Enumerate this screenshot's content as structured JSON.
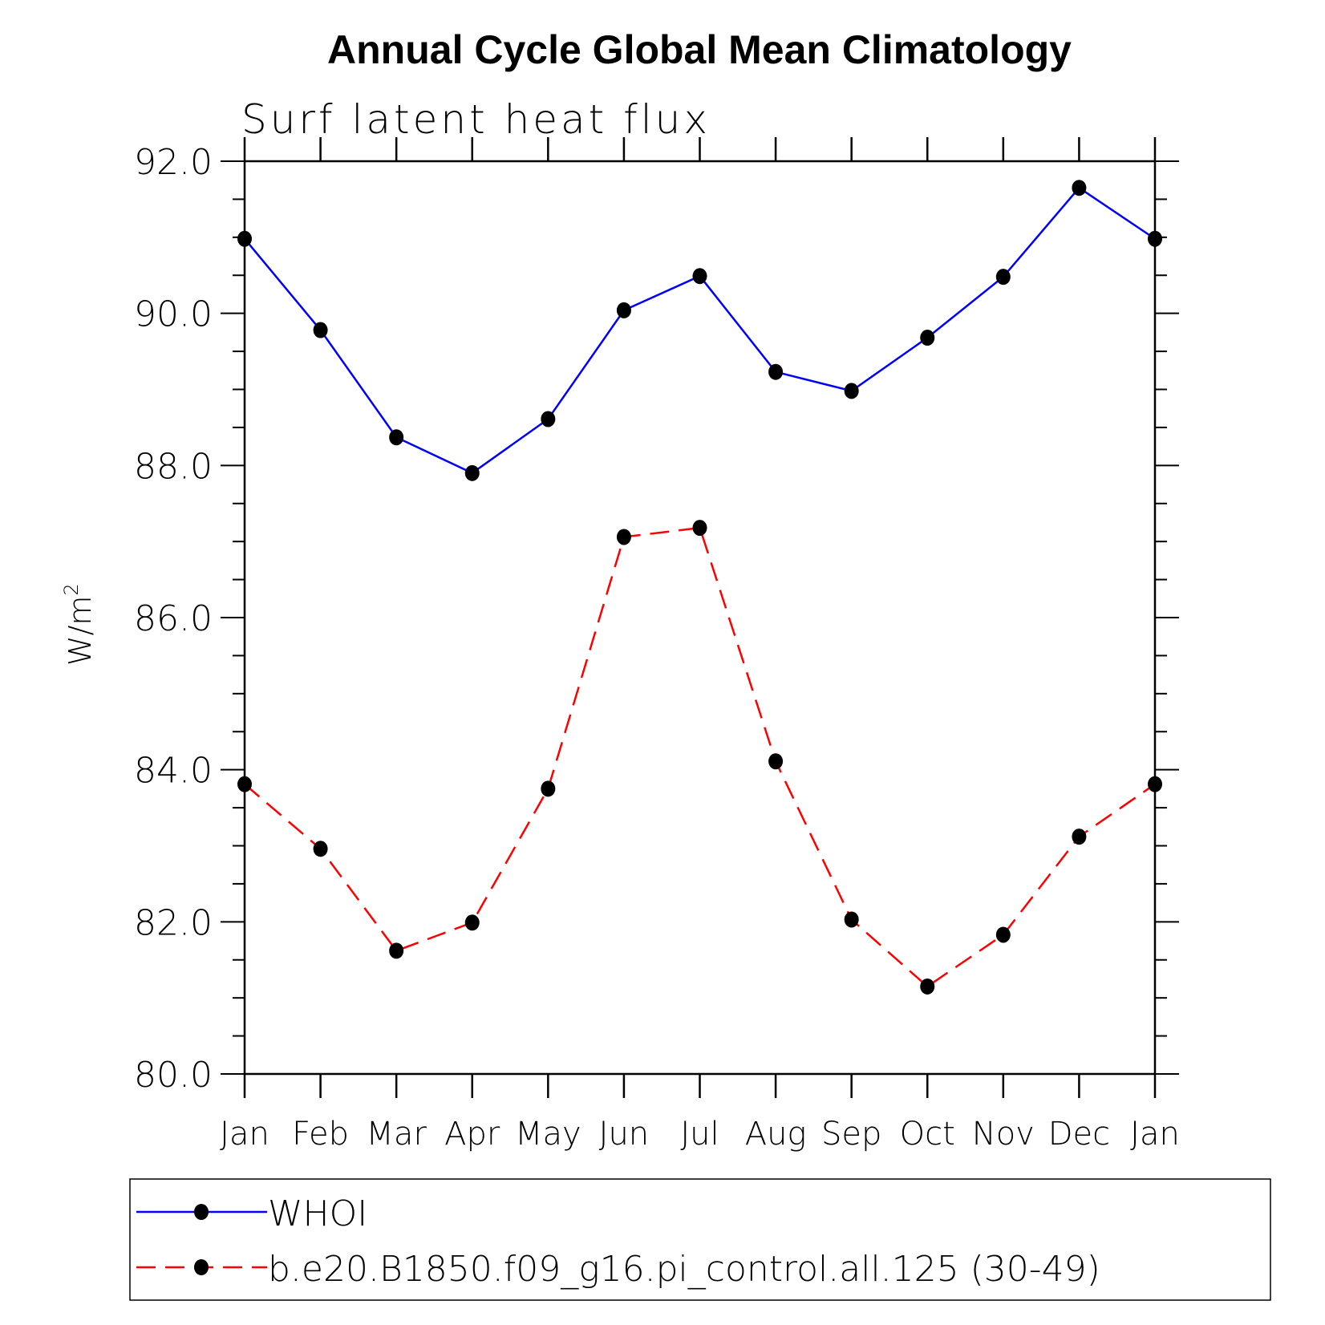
{
  "chart_data": {
    "type": "line",
    "title": "Annual Cycle Global Mean Climatology",
    "subtitle": "Surf latent heat flux",
    "xlabel": "",
    "ylabel": "W/m",
    "ylabel_superscript": "2",
    "ylim": [
      80,
      92
    ],
    "yticks": [
      "80.0",
      "82.0",
      "84.0",
      "86.0",
      "88.0",
      "90.0",
      "92.0"
    ],
    "categories": [
      "Jan",
      "Feb",
      "Mar",
      "Apr",
      "May",
      "Jun",
      "Jul",
      "Aug",
      "Sep",
      "Oct",
      "Nov",
      "Dec",
      "Jan"
    ],
    "grid": false,
    "legend_position": "bottom",
    "series": [
      {
        "name": "WHOI",
        "color": "#0000ff",
        "dash": "solid",
        "marker": "filled-circle",
        "values": [
          90.98,
          89.78,
          88.37,
          87.9,
          88.61,
          90.04,
          90.49,
          89.23,
          88.98,
          89.68,
          90.48,
          91.65,
          90.98
        ]
      },
      {
        "name": "b.e20.B1850.f09_g16.pi_control.all.125 (30-49)",
        "color": "#ff0000",
        "dash": "dashed",
        "marker": "filled-circle",
        "values": [
          83.81,
          82.96,
          81.62,
          81.99,
          83.75,
          87.06,
          87.18,
          84.11,
          82.03,
          81.15,
          81.83,
          83.12,
          83.81
        ]
      }
    ]
  }
}
